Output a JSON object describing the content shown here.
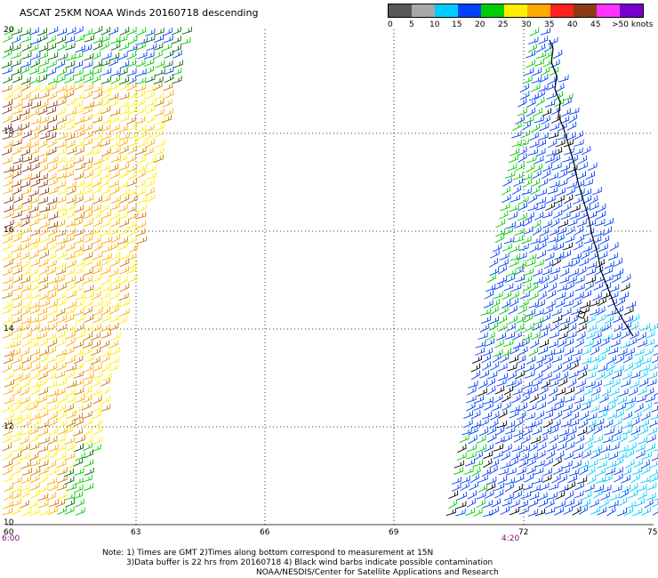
{
  "title": "ASCAT 25KM NOAA Winds 20160718 descending",
  "legend": {
    "labels": [
      "0",
      "5",
      "10",
      "15",
      "20",
      "25",
      "30",
      "35",
      "40",
      "45",
      ">50 knots"
    ],
    "colors": [
      "#585858",
      "#a8a8a8",
      "#00ccff",
      "#0040ff",
      "#00cc00",
      "#ffee00",
      "#ffaa00",
      "#ff2020",
      "#8b3a1a",
      "#ff33ff",
      "#7700cc"
    ]
  },
  "axes": {
    "lat_labels": [
      "20",
      "18",
      "16",
      "14",
      "12",
      "10"
    ],
    "lon_labels": [
      "60",
      "63",
      "66",
      "69",
      "72",
      "75"
    ],
    "time_labels": [
      "6:00",
      "4:20"
    ]
  },
  "notes": {
    "line1": "Note: 1) Times are GMT 2)Times along bottom correspond to measurement at 15N",
    "line2": "3)Data buffer is 22 hrs from 20160718 4) Black wind barbs indicate possible contamination",
    "line3": "NOAA/NESDIS/Center for Satellite Applications and Research"
  }
}
